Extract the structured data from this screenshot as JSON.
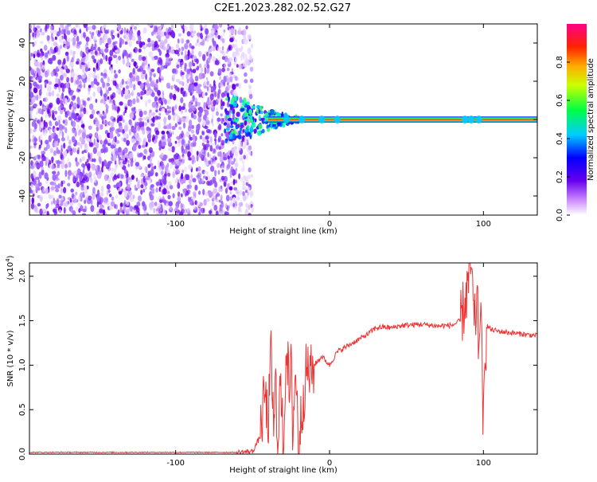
{
  "title": "C2E1.2023.282.02.52.G27",
  "chart_data": [
    {
      "type": "heatmap",
      "xlabel": "Height of straight line (km)",
      "ylabel": "Frequency (Hz)",
      "xlim": [
        -195,
        135
      ],
      "ylim": [
        -50,
        50
      ],
      "xticks": [
        -100,
        0,
        100
      ],
      "xtick_labels": [
        "-100",
        "0",
        "100"
      ],
      "yticks": [
        -40,
        -20,
        0,
        20,
        40
      ],
      "ytick_labels": [
        "-40",
        "-20",
        "0",
        "20",
        "40"
      ],
      "colorbar": {
        "label": "Normalized spectral amplitude",
        "range": [
          0.0,
          1.0
        ],
        "ticks": [
          0.0,
          0.2,
          0.4,
          0.6,
          0.8
        ],
        "tick_labels": [
          "0.0",
          "0.2",
          "0.4",
          "0.6",
          "0.8"
        ],
        "colormap": "rainbow (white-purple-blue-cyan-green-yellow-red-magenta)"
      },
      "noise_region_x": [
        -195,
        -58
      ],
      "transition_region_x": [
        -68,
        -20
      ],
      "signal_line": {
        "x": [
          -40,
          135
        ],
        "frequency": 0
      }
    },
    {
      "type": "line",
      "xlabel": "Height of straight line (km)",
      "ylabel": "SNR (10 * v/v)",
      "y_multiplier_label": "(x10^4)",
      "xlim": [
        -195,
        135
      ],
      "ylim": [
        0,
        2.15
      ],
      "xticks": [
        -100,
        0,
        100
      ],
      "xtick_labels": [
        "-100",
        "0",
        "100"
      ],
      "yticks": [
        0.0,
        0.5,
        1.0,
        1.5,
        2.0
      ],
      "ytick_labels": [
        "0.0",
        "0.5",
        "1.0",
        "1.5",
        "2.0"
      ],
      "color": "#ee3333",
      "series": [
        {
          "x": [
            -195,
            -150,
            -100,
            -60,
            -50,
            -45,
            -42,
            -40,
            -38,
            -36,
            -35,
            -34,
            -32,
            -30,
            -28,
            -26,
            -25,
            -24,
            -22,
            -20,
            -18,
            -16,
            -15,
            -12,
            -10,
            -5,
            0,
            5,
            10,
            15,
            20,
            25,
            30,
            35,
            40,
            45,
            50,
            60,
            70,
            80,
            85,
            88,
            90,
            92,
            94,
            96,
            97,
            98,
            100,
            102,
            105,
            110,
            120,
            130,
            135
          ],
          "values": [
            0.02,
            0.02,
            0.02,
            0.02,
            0.03,
            0.2,
            0.7,
            0.3,
            1.1,
            0.2,
            0.9,
            0.1,
            0.8,
            0.05,
            1.3,
            0.6,
            1.0,
            0.3,
            0.95,
            0.1,
            0.5,
            0.8,
            0.95,
            0.9,
            1.0,
            1.1,
            1.0,
            1.15,
            1.2,
            1.25,
            1.3,
            1.35,
            1.42,
            1.43,
            1.42,
            1.44,
            1.45,
            1.46,
            1.44,
            1.45,
            1.5,
            1.7,
            1.9,
            2.15,
            1.4,
            1.75,
            1.1,
            1.8,
            0.3,
            1.45,
            1.4,
            1.38,
            1.36,
            1.34,
            1.33
          ]
        }
      ]
    }
  ]
}
